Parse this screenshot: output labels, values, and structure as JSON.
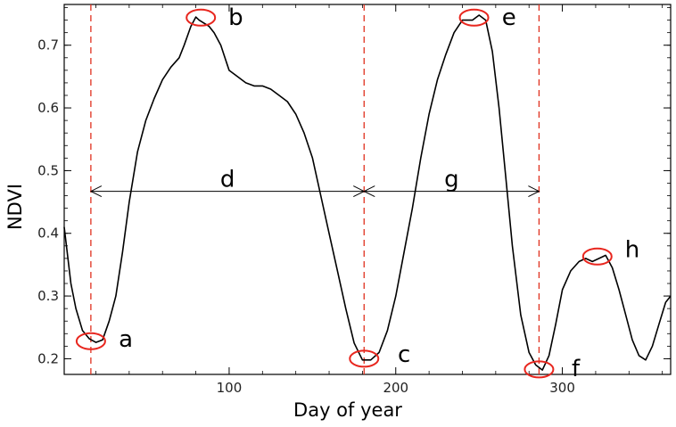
{
  "chart_data": {
    "type": "line",
    "xlabel": "Day of year",
    "ylabel": "NDVI",
    "xlim": [
      1,
      365
    ],
    "ylim": [
      0.175,
      0.765
    ],
    "x_ticks": [
      100,
      200,
      300
    ],
    "y_ticks": [
      0.2,
      0.3,
      0.4,
      0.5,
      0.6,
      0.7
    ],
    "y_tick_labels": [
      "0.2",
      "0.3",
      "0.4",
      "0.5",
      "0.6",
      "0.7"
    ],
    "x_tick_labels": [
      "100",
      "200",
      "300"
    ],
    "grid": false,
    "series": [
      {
        "color": "#000000",
        "x": [
          1,
          5,
          8,
          12,
          16,
          20,
          24,
          28,
          32,
          36,
          40,
          45,
          50,
          55,
          60,
          65,
          70,
          73,
          77,
          80,
          82,
          85,
          88,
          91,
          95,
          100,
          105,
          110,
          115,
          120,
          125,
          130,
          135,
          140,
          145,
          150,
          155,
          160,
          165,
          170,
          175,
          180,
          185,
          190,
          195,
          200,
          205,
          210,
          215,
          220,
          225,
          230,
          235,
          240,
          243,
          246,
          250,
          254,
          258,
          262,
          266,
          270,
          275,
          280,
          284,
          288,
          292,
          296,
          300,
          305,
          310,
          314,
          318,
          322,
          326,
          330,
          334,
          338,
          342,
          346,
          350,
          354,
          358,
          362,
          365
        ],
        "y": [
          0.41,
          0.32,
          0.28,
          0.245,
          0.232,
          0.226,
          0.23,
          0.26,
          0.3,
          0.37,
          0.45,
          0.53,
          0.58,
          0.615,
          0.645,
          0.665,
          0.68,
          0.7,
          0.73,
          0.745,
          0.74,
          0.735,
          0.73,
          0.72,
          0.7,
          0.66,
          0.65,
          0.64,
          0.635,
          0.635,
          0.63,
          0.62,
          0.61,
          0.59,
          0.56,
          0.52,
          0.46,
          0.4,
          0.34,
          0.28,
          0.225,
          0.198,
          0.198,
          0.21,
          0.245,
          0.3,
          0.37,
          0.44,
          0.52,
          0.59,
          0.645,
          0.685,
          0.72,
          0.74,
          0.74,
          0.74,
          0.748,
          0.74,
          0.69,
          0.6,
          0.49,
          0.38,
          0.27,
          0.21,
          0.19,
          0.182,
          0.205,
          0.255,
          0.31,
          0.34,
          0.355,
          0.36,
          0.355,
          0.36,
          0.365,
          0.345,
          0.31,
          0.27,
          0.23,
          0.205,
          0.198,
          0.22,
          0.255,
          0.29,
          0.3
        ]
      }
    ],
    "vlines": [
      17,
      181,
      286
    ],
    "vline_color": "#e0301e",
    "arrows": [
      {
        "x1": 17,
        "x2": 181,
        "y": 0.467,
        "label": "d"
      },
      {
        "x1": 181,
        "x2": 286,
        "y": 0.467,
        "label": "g"
      }
    ],
    "circles": [
      {
        "x": 17,
        "y": 0.228
      },
      {
        "x": 83,
        "y": 0.744
      },
      {
        "x": 181,
        "y": 0.2
      },
      {
        "x": 247,
        "y": 0.744
      },
      {
        "x": 286,
        "y": 0.183
      },
      {
        "x": 321,
        "y": 0.363
      }
    ],
    "circle_color": "#e8261e",
    "annotations": [
      {
        "text": "a",
        "x": 38,
        "y": 0.232
      },
      {
        "text": "b",
        "x": 104,
        "y": 0.745
      },
      {
        "text": "c",
        "x": 205,
        "y": 0.208
      },
      {
        "text": "e",
        "x": 268,
        "y": 0.745
      },
      {
        "text": "f",
        "x": 308,
        "y": 0.185
      },
      {
        "text": "h",
        "x": 342,
        "y": 0.375
      }
    ]
  }
}
